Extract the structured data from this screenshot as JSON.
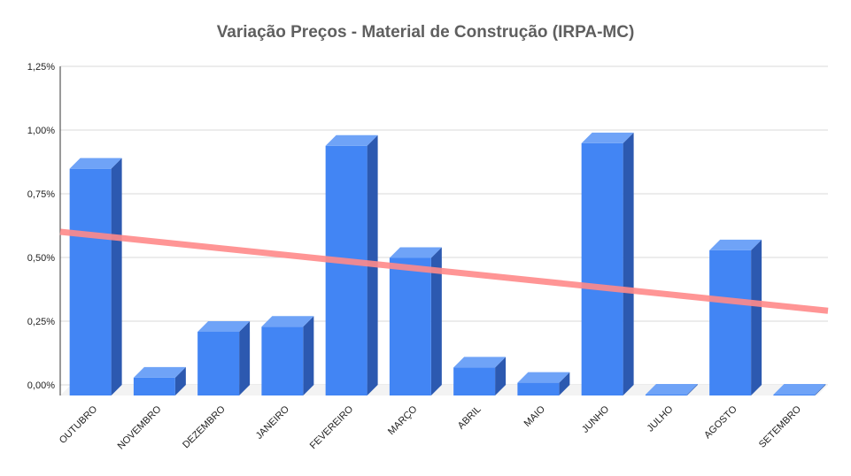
{
  "chart_data": {
    "type": "bar",
    "title": "Variação Preços - Material de Construção (IRPA-MC)",
    "xlabel": "",
    "ylabel": "",
    "categories": [
      "OUTUBRO",
      "NOVEMBRO",
      "DEZEMBRO",
      "JANEIRO",
      "FEVEREIRO",
      "MARÇO",
      "ABRIL",
      "MAIO",
      "JUNHO",
      "JULHO",
      "AGOSTO",
      "SETEMBRO"
    ],
    "series": [
      {
        "values": [
          0.89,
          0.07,
          0.25,
          0.27,
          0.98,
          0.54,
          0.11,
          0.05,
          0.99,
          -0.02,
          0.57,
          -0.02
        ],
        "color": "#4285f4"
      }
    ],
    "trendline": {
      "type": "linear",
      "start": 0.58,
      "end": 0.27,
      "color": "#ff8a8a"
    },
    "ylim": [
      0,
      1.25
    ],
    "yticks": [
      "0,00%",
      "0,25%",
      "0,50%",
      "0,75%",
      "1,00%",
      "1,25%"
    ],
    "grid": true,
    "legend": "none",
    "style": "3d-bar"
  }
}
